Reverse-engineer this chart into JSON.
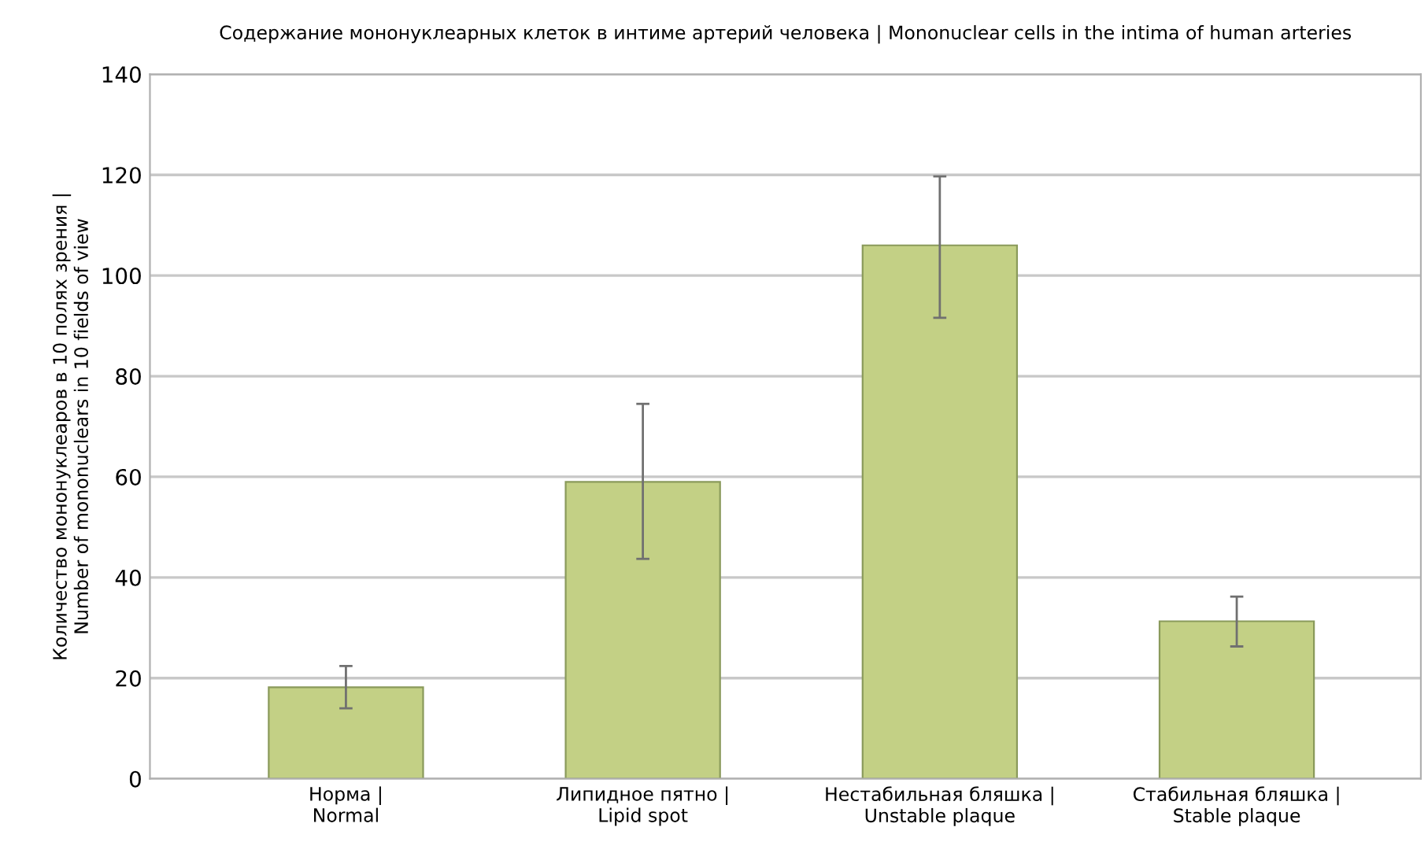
{
  "chart_data": {
    "type": "bar",
    "title": "Содержание мононуклеарных клеток в интиме артерий человека | Mononuclear cells in the intima of human arteries",
    "ylabel": "Количество мононуклеаров в 10 полях зрения |\nNumber of mononuclears in 10 fields of view",
    "categories": [
      "Норма |\nNormal",
      "Липидное пятно |\nLipid spot",
      "Нестабильная бляшка |\nUnstable plaque",
      "Стабильная бляшка |\nStable plaque"
    ],
    "values": [
      18.2,
      59,
      106,
      31.3
    ],
    "errors": [
      [
        14,
        22.4
      ],
      [
        43.7,
        74.5
      ],
      [
        91.6,
        119.7
      ],
      [
        26.3,
        36.2
      ]
    ],
    "color": "#c3d085",
    "ylim": [
      0,
      140
    ],
    "yticks": [
      0,
      20,
      40,
      60,
      80,
      100,
      120,
      140
    ],
    "grid": "y"
  }
}
